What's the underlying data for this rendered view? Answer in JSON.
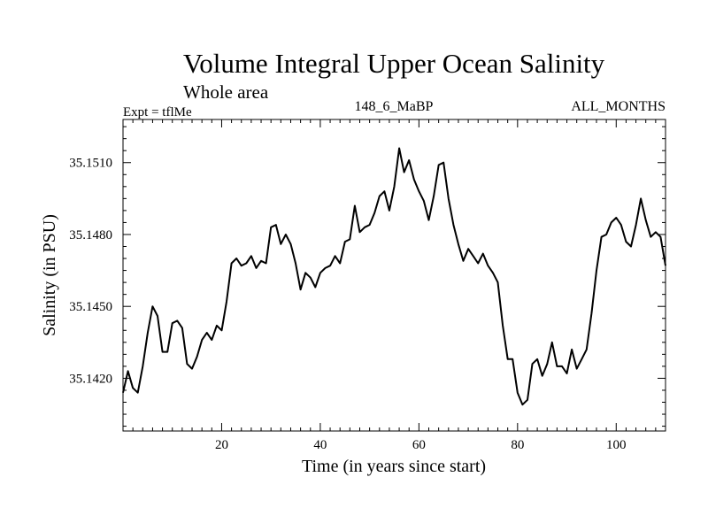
{
  "chart_data": {
    "type": "line",
    "title": "Volume Integral Upper Ocean Salinity",
    "subtitle": "Whole area",
    "label_left": "Expt = tflMe",
    "label_center": "148_6_MaBP",
    "label_right": "ALL_MONTHS",
    "xlabel": "Time (in years since start)",
    "ylabel": "Salinity (in PSU)",
    "xlim": [
      0,
      110
    ],
    "ylim": [
      35.1398,
      35.1528
    ],
    "x_ticks": [
      20,
      40,
      60,
      80,
      100
    ],
    "x_tick_labels": [
      "20",
      "40",
      "60",
      "80",
      "100"
    ],
    "y_ticks": [
      35.142,
      35.145,
      35.148,
      35.151
    ],
    "y_tick_labels": [
      "35.1420",
      "35.1450",
      "35.1480",
      "35.1510"
    ],
    "x_minor_step": 2,
    "y_minor_step": 0.0005,
    "grid": false,
    "series": [
      {
        "name": "salinity",
        "color": "#000000",
        "x": [
          0,
          1,
          2,
          3,
          4,
          5,
          6,
          7,
          8,
          9,
          10,
          11,
          12,
          13,
          14,
          15,
          16,
          17,
          18,
          19,
          20,
          21,
          22,
          23,
          24,
          25,
          26,
          27,
          28,
          29,
          30,
          31,
          32,
          33,
          34,
          35,
          36,
          37,
          38,
          39,
          40,
          41,
          42,
          43,
          44,
          45,
          46,
          47,
          48,
          49,
          50,
          51,
          52,
          53,
          54,
          55,
          56,
          57,
          58,
          59,
          60,
          61,
          62,
          63,
          64,
          65,
          66,
          67,
          68,
          69,
          70,
          71,
          72,
          73,
          74,
          75,
          76,
          77,
          78,
          79,
          80,
          81,
          82,
          83,
          84,
          85,
          86,
          87,
          88,
          89,
          90,
          91,
          92,
          93,
          94,
          95,
          96,
          97,
          98,
          99,
          100,
          101,
          102,
          103,
          104,
          105,
          106,
          107,
          108,
          109,
          110
        ],
        "values": [
          35.1414,
          35.1423,
          35.1416,
          35.1414,
          35.1425,
          35.1439,
          35.145,
          35.1446,
          35.1431,
          35.1431,
          35.1443,
          35.1444,
          35.1441,
          35.1426,
          35.1424,
          35.1429,
          35.1436,
          35.1439,
          35.1436,
          35.1442,
          35.144,
          35.1452,
          35.1468,
          35.147,
          35.1467,
          35.1468,
          35.1471,
          35.1466,
          35.1469,
          35.1468,
          35.1483,
          35.1484,
          35.1476,
          35.148,
          35.1476,
          35.1468,
          35.1457,
          35.1464,
          35.1462,
          35.1458,
          35.1464,
          35.1466,
          35.1467,
          35.1471,
          35.1468,
          35.1477,
          35.1478,
          35.1492,
          35.1481,
          35.1483,
          35.1484,
          35.1489,
          35.1496,
          35.1498,
          35.149,
          35.15,
          35.1516,
          35.1506,
          35.1511,
          35.1503,
          35.1498,
          35.1494,
          35.1486,
          35.1496,
          35.1509,
          35.151,
          35.1495,
          35.1484,
          35.1476,
          35.1469,
          35.1474,
          35.1471,
          35.1468,
          35.1472,
          35.1467,
          35.1464,
          35.146,
          35.1442,
          35.1428,
          35.1428,
          35.1414,
          35.1409,
          35.1411,
          35.1426,
          35.1428,
          35.1421,
          35.1426,
          35.1435,
          35.1425,
          35.1425,
          35.1422,
          35.1432,
          35.1424,
          35.1428,
          35.1432,
          35.1447,
          35.1465,
          35.1479,
          35.148,
          35.1485,
          35.1487,
          35.1484,
          35.1477,
          35.1475,
          35.1484,
          35.1495,
          35.1486,
          35.1479,
          35.1481,
          35.1479,
          35.1467
        ]
      }
    ]
  }
}
